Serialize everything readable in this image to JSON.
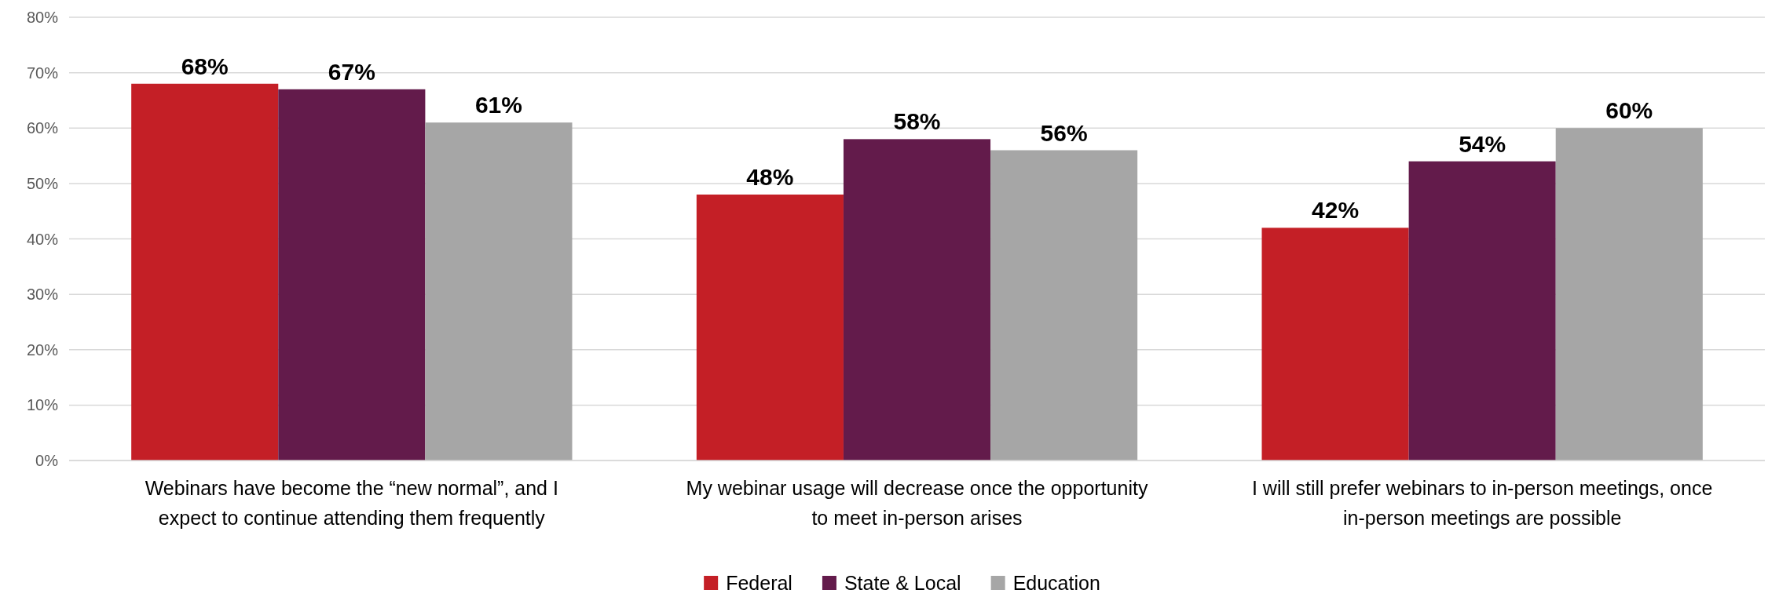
{
  "chart_data": {
    "type": "bar",
    "categories": [
      "Webinars have become the “new normal”, and I expect to continue attending them frequently",
      "My webinar usage will decrease once the opportunity to meet in-person arises",
      "I will still prefer webinars to in-person meetings, once in-person meetings are possible"
    ],
    "series": [
      {
        "name": "Federal",
        "color": "#c41f26",
        "values": [
          68,
          48,
          42
        ],
        "value_labels": [
          "68%",
          "48%",
          "42%"
        ]
      },
      {
        "name": "State & Local",
        "color": "#631b4b",
        "values": [
          67,
          58,
          54
        ],
        "value_labels": [
          "67%",
          "58%",
          "54%"
        ]
      },
      {
        "name": "Education",
        "color": "#a6a6a6",
        "values": [
          61,
          56,
          60
        ],
        "value_labels": [
          "61%",
          "56%",
          "60%"
        ]
      }
    ],
    "ylim": [
      0,
      80
    ],
    "yticks": [
      {
        "value": 0,
        "label": "0%"
      },
      {
        "value": 10,
        "label": "10%"
      },
      {
        "value": 20,
        "label": "20%"
      },
      {
        "value": 30,
        "label": "30%"
      },
      {
        "value": 40,
        "label": "40%"
      },
      {
        "value": 50,
        "label": "50%"
      },
      {
        "value": 60,
        "label": "60%"
      },
      {
        "value": 70,
        "label": "70%"
      },
      {
        "value": 80,
        "label": "80%"
      }
    ],
    "grid": "y",
    "legend": "bottom"
  }
}
